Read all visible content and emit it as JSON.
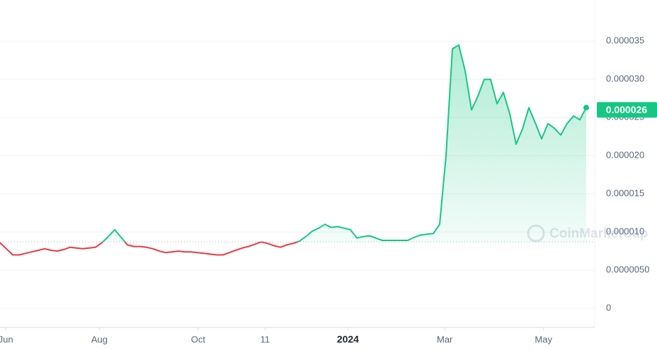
{
  "chart_data": {
    "type": "line",
    "values": [
      8.6e-06,
      7.8e-06,
      7e-06,
      7e-06,
      7.2e-06,
      7.4e-06,
      7.6e-06,
      7.8e-06,
      7.6e-06,
      7.5e-06,
      7.7e-06,
      8e-06,
      7.9e-06,
      7.8e-06,
      7.9e-06,
      8e-06,
      8.6e-06,
      9.4e-06,
      1.03e-05,
      9.3e-06,
      8.3e-06,
      8.1e-06,
      8.1e-06,
      8e-06,
      7.8e-06,
      7.5e-06,
      7.3e-06,
      7.4e-06,
      7.5e-06,
      7.4e-06,
      7.4e-06,
      7.3e-06,
      7.2e-06,
      7.1e-06,
      7e-06,
      7e-06,
      7.3e-06,
      7.6e-06,
      7.9e-06,
      8.1e-06,
      8.4e-06,
      8.7e-06,
      8.5e-06,
      8.2e-06,
      8e-06,
      8.3e-06,
      8.5e-06,
      8.8e-06,
      9.4e-06,
      1.01e-05,
      1.05e-05,
      1.1e-05,
      1.06e-05,
      1.07e-05,
      1.05e-05,
      1.03e-05,
      9.2e-06,
      9.4e-06,
      9.5e-06,
      9.2e-06,
      8.9e-06,
      8.9e-06,
      8.9e-06,
      8.9e-06,
      8.9e-06,
      9.3e-06,
      9.6e-06,
      9.7e-06,
      9.8e-06,
      1.1e-05,
      2e-05,
      3.4e-05,
      3.45e-05,
      3.11e-05,
      2.6e-05,
      2.78e-05,
      3e-05,
      3e-05,
      2.68e-05,
      2.83e-05,
      2.55e-05,
      2.15e-05,
      2.35e-05,
      2.63e-05,
      2.43e-05,
      2.22e-05,
      2.42e-05,
      2.36e-05,
      2.27e-05,
      2.42e-05,
      2.52e-05,
      2.47e-05,
      2.63e-05
    ],
    "baseline": 8.7e-06,
    "colors": {
      "above": "#16c784",
      "below": "#ea3943"
    },
    "ylim": [
      -2.5e-06,
      4.04e-05
    ],
    "yticks": [
      0,
      {
        "value": 5e-06,
        "label": "0.0000050"
      },
      {
        "value": 1e-05,
        "label": "0.000010"
      },
      {
        "value": 1.5e-05,
        "label": "0.000015"
      },
      {
        "value": 2e-05,
        "label": "0.000020"
      },
      {
        "value": 2.5e-05,
        "label": "0.000025"
      },
      {
        "value": 3e-05,
        "label": "0.000030"
      },
      {
        "value": 3.5e-05,
        "label": "0.000035"
      }
    ],
    "xlim": [
      0,
      92
    ],
    "xticks": [
      {
        "value": 0.9,
        "label": "Jun"
      },
      {
        "value": 15.6,
        "label": "Aug"
      },
      {
        "value": 31.1,
        "label": "Oct"
      },
      {
        "value": 41.6,
        "label": "11"
      },
      {
        "value": 54.6,
        "label": "2024",
        "bold": true
      },
      {
        "value": 69.8,
        "label": "Mar"
      },
      {
        "value": 85.3,
        "label": "May"
      }
    ],
    "current_price": {
      "value": 2.6e-05,
      "label": "0.000026"
    },
    "watermark": "CoinMarketCap",
    "grid": true
  }
}
